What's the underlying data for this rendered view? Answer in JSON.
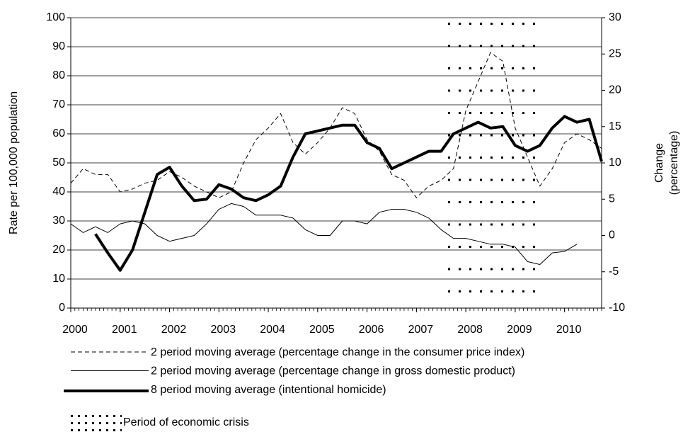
{
  "chart_data": {
    "type": "line",
    "ylabel": "Rate per 100,000 population",
    "y2label": [
      "Change",
      "(percentage)"
    ],
    "x": [
      2000,
      2000.25,
      2000.5,
      2000.75,
      2001,
      2001.25,
      2001.5,
      2001.75,
      2002,
      2002.25,
      2002.5,
      2002.75,
      2003,
      2003.25,
      2003.5,
      2003.75,
      2004,
      2004.25,
      2004.5,
      2004.75,
      2005,
      2005.25,
      2005.5,
      2005.75,
      2006,
      2006.25,
      2006.5,
      2006.75,
      2007,
      2007.25,
      2007.5,
      2007.75,
      2008,
      2008.25,
      2008.5,
      2008.75,
      2009,
      2009.25,
      2009.5,
      2009.75,
      2010,
      2010.25,
      2010.5,
      2010.75
    ],
    "xlim": [
      2000,
      2010.75
    ],
    "xticks": [
      2000,
      2001,
      2002,
      2003,
      2004,
      2005,
      2006,
      2007,
      2008,
      2009,
      2010
    ],
    "ylim": [
      0,
      100
    ],
    "yticks": [
      0,
      10,
      20,
      30,
      40,
      50,
      60,
      70,
      80,
      90,
      100
    ],
    "y2lim": [
      -10,
      30
    ],
    "y2ticks": [
      -10,
      -5,
      0,
      5,
      10,
      15,
      20,
      25,
      30
    ],
    "grid": true,
    "series": [
      {
        "name": "2 period moving average (percentage change in the consumer price index)",
        "color": "#000000",
        "style": "dashed",
        "width": 1,
        "axis": "y2",
        "values": [
          7.2,
          9.2,
          8.4,
          8.4,
          6,
          6.4,
          7.2,
          7.6,
          8.8,
          8,
          6.8,
          6,
          5.2,
          6,
          10,
          13.2,
          14.8,
          16.8,
          12.8,
          11.2,
          12.8,
          14.8,
          17.6,
          16.8,
          13.2,
          11.6,
          8.4,
          7.6,
          5.2,
          6.8,
          7.6,
          9.2,
          17.2,
          21.2,
          25.2,
          24,
          14.8,
          10.8,
          6.8,
          9.2,
          12.8,
          14,
          13.2,
          12
        ]
      },
      {
        "name": "2 period moving average (percentage change in gross domestic product)",
        "color": "#000000",
        "style": "solid",
        "width": 1,
        "axis": "y2",
        "values": [
          1.6,
          0.4,
          1.2,
          0.4,
          1.6,
          2,
          1.6,
          0,
          -0.8,
          -0.4,
          0,
          1.6,
          3.6,
          4.4,
          4,
          2.8,
          2.8,
          2.8,
          2.4,
          0.8,
          0,
          0,
          2,
          2,
          1.6,
          3.2,
          3.6,
          3.6,
          3.2,
          2.4,
          0.8,
          -0.4,
          -0.4,
          -0.8,
          -1.2,
          -1.2,
          -1.6,
          -3.6,
          -4,
          -2.4,
          -2.2,
          -1.2,
          null,
          null
        ]
      },
      {
        "name": "8 period moving average (intentional homicide)",
        "color": "#000000",
        "style": "solid",
        "width": 4,
        "axis": "y",
        "values": [
          null,
          null,
          25.5,
          19,
          13,
          20,
          33,
          46,
          48.5,
          42,
          37,
          37.5,
          42.5,
          41,
          38,
          37,
          39,
          42,
          52,
          60,
          61,
          62,
          63,
          63,
          57,
          55,
          48,
          50,
          52,
          54,
          54,
          60,
          62,
          64,
          62,
          62.5,
          56,
          54,
          56,
          62,
          66,
          64,
          65,
          50.5
        ]
      }
    ],
    "shaded_periods": [
      {
        "name": "Period of economic crisis",
        "x": [
          2007.625,
          2009.5
        ]
      }
    ]
  }
}
